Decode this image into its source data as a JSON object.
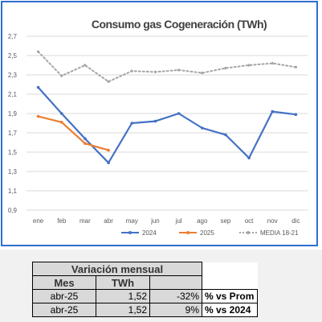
{
  "chart_data": {
    "type": "line",
    "title": "Consumo gas Cogeneración (TWh)",
    "categories": [
      "ene",
      "feb",
      "mar",
      "abr",
      "may",
      "jun",
      "jul",
      "ago",
      "sep",
      "oct",
      "nov",
      "dic"
    ],
    "ylim": [
      0.9,
      2.7
    ],
    "yticks": [
      "0,9",
      "1,1",
      "1,3",
      "1,5",
      "1,7",
      "1,9",
      "2,1",
      "2,3",
      "2,5",
      "2,7"
    ],
    "grid": true,
    "legend_position": "bottom",
    "series": [
      {
        "name": "2024",
        "color": "#4472c4",
        "style": "solid",
        "values": [
          2.17,
          1.9,
          1.64,
          1.39,
          1.8,
          1.82,
          1.9,
          1.75,
          1.68,
          1.44,
          1.92,
          1.89
        ]
      },
      {
        "name": "2025",
        "color": "#ed7d31",
        "style": "solid",
        "values": [
          1.87,
          1.81,
          1.59,
          1.52,
          null,
          null,
          null,
          null,
          null,
          null,
          null,
          null
        ]
      },
      {
        "name": "MEDIA 18-21",
        "color": "#a5a5a5",
        "style": "dotted",
        "values": [
          2.54,
          2.29,
          2.4,
          2.23,
          2.34,
          2.33,
          2.35,
          2.32,
          2.37,
          2.4,
          2.42,
          2.38
        ]
      }
    ]
  },
  "table": {
    "title": "Variación mensual",
    "col_mes": "Mes",
    "col_twh": "TWh",
    "rows": [
      {
        "mes": "abr-25",
        "twh": "1,52",
        "pct": "-32%",
        "note": "% vs Prom"
      },
      {
        "mes": "abr-25",
        "twh": "1,52",
        "pct": "9%",
        "note": "% vs 2024"
      }
    ]
  }
}
